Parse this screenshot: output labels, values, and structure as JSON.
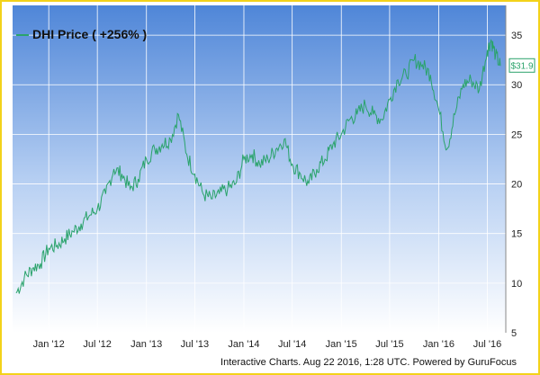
{
  "chart_data": {
    "type": "line",
    "legend": "DHI Price ( +256% )",
    "footer": "Interactive Charts. Aug 22 2016, 1:28 UTC. Powered by GuruFocus",
    "last_value_label": "$31.9",
    "series_color": "#2aa36b",
    "x_ticks": [
      "Jan '12",
      "Jul '12",
      "Jan '13",
      "Jul '13",
      "Jan '14",
      "Jul '14",
      "Jan '15",
      "Jul '15",
      "Jan '16",
      "Jul '16"
    ],
    "y_ticks": [
      5,
      10,
      15,
      20,
      25,
      30,
      35
    ],
    "ylim": [
      5,
      38
    ],
    "grid": true,
    "legend_position": "top-left",
    "series": [
      {
        "values": [
          {
            "x": "2011-09-01",
            "y": 9.0
          },
          {
            "x": "2011-10-01",
            "y": 10.5
          },
          {
            "x": "2011-11-01",
            "y": 11.5
          },
          {
            "x": "2011-12-01",
            "y": 12.0
          },
          {
            "x": "2012-01-01",
            "y": 13.5
          },
          {
            "x": "2012-02-01",
            "y": 13.8
          },
          {
            "x": "2012-03-01",
            "y": 14.5
          },
          {
            "x": "2012-04-01",
            "y": 15.2
          },
          {
            "x": "2012-05-01",
            "y": 16.0
          },
          {
            "x": "2012-06-01",
            "y": 16.8
          },
          {
            "x": "2012-07-01",
            "y": 17.5
          },
          {
            "x": "2012-08-01",
            "y": 19.0
          },
          {
            "x": "2012-09-01",
            "y": 21.5
          },
          {
            "x": "2012-10-01",
            "y": 21.0
          },
          {
            "x": "2012-11-01",
            "y": 19.5
          },
          {
            "x": "2012-12-01",
            "y": 20.5
          },
          {
            "x": "2013-01-01",
            "y": 22.5
          },
          {
            "x": "2013-02-01",
            "y": 23.5
          },
          {
            "x": "2013-03-01",
            "y": 24.0
          },
          {
            "x": "2013-04-01",
            "y": 24.5
          },
          {
            "x": "2013-05-01",
            "y": 27.0
          },
          {
            "x": "2013-06-01",
            "y": 23.0
          },
          {
            "x": "2013-07-01",
            "y": 21.0
          },
          {
            "x": "2013-08-01",
            "y": 19.0
          },
          {
            "x": "2013-09-01",
            "y": 18.5
          },
          {
            "x": "2013-10-01",
            "y": 19.0
          },
          {
            "x": "2013-11-01",
            "y": 19.5
          },
          {
            "x": "2013-12-01",
            "y": 20.0
          },
          {
            "x": "2014-01-01",
            "y": 22.5
          },
          {
            "x": "2014-02-01",
            "y": 23.0
          },
          {
            "x": "2014-03-01",
            "y": 22.0
          },
          {
            "x": "2014-04-01",
            "y": 22.5
          },
          {
            "x": "2014-05-01",
            "y": 23.5
          },
          {
            "x": "2014-06-01",
            "y": 24.5
          },
          {
            "x": "2014-07-01",
            "y": 22.0
          },
          {
            "x": "2014-08-01",
            "y": 21.0
          },
          {
            "x": "2014-09-01",
            "y": 20.0
          },
          {
            "x": "2014-10-01",
            "y": 21.5
          },
          {
            "x": "2014-11-01",
            "y": 22.5
          },
          {
            "x": "2014-12-01",
            "y": 24.0
          },
          {
            "x": "2015-01-01",
            "y": 25.0
          },
          {
            "x": "2015-02-01",
            "y": 26.5
          },
          {
            "x": "2015-03-01",
            "y": 27.0
          },
          {
            "x": "2015-04-01",
            "y": 28.0
          },
          {
            "x": "2015-05-01",
            "y": 27.0
          },
          {
            "x": "2015-06-01",
            "y": 26.5
          },
          {
            "x": "2015-07-01",
            "y": 28.5
          },
          {
            "x": "2015-08-01",
            "y": 30.5
          },
          {
            "x": "2015-09-01",
            "y": 31.0
          },
          {
            "x": "2015-10-01",
            "y": 32.5
          },
          {
            "x": "2015-11-01",
            "y": 32.0
          },
          {
            "x": "2015-12-01",
            "y": 31.0
          },
          {
            "x": "2016-01-01",
            "y": 27.5
          },
          {
            "x": "2016-02-01",
            "y": 23.5
          },
          {
            "x": "2016-03-01",
            "y": 27.0
          },
          {
            "x": "2016-04-01",
            "y": 30.0
          },
          {
            "x": "2016-05-01",
            "y": 30.5
          },
          {
            "x": "2016-06-01",
            "y": 29.5
          },
          {
            "x": "2016-07-01",
            "y": 33.5
          },
          {
            "x": "2016-07-15",
            "y": 34.5
          },
          {
            "x": "2016-08-01",
            "y": 33.0
          },
          {
            "x": "2016-08-19",
            "y": 31.9
          }
        ]
      }
    ]
  }
}
